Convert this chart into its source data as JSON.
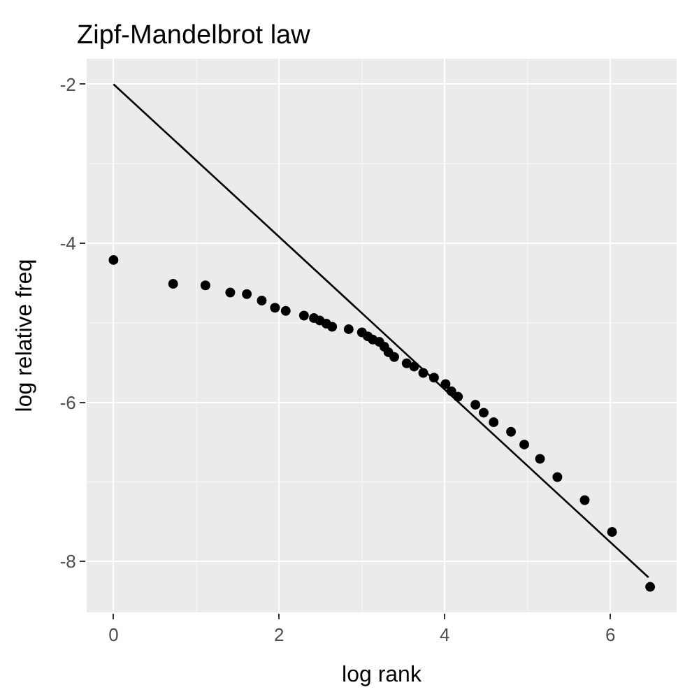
{
  "chart_data": {
    "type": "scatter",
    "title": "Zipf-Mandelbrot law",
    "xlabel": "log rank",
    "ylabel": "log relative freq",
    "xlim": [
      -0.324,
      6.8
    ],
    "xticks": [
      0,
      2,
      4,
      6
    ],
    "ylim": [
      -8.64,
      -1.68
    ],
    "yticks": [
      -8,
      -6,
      -4,
      -2
    ],
    "grid": true,
    "legend": false,
    "series": [
      {
        "color": "#000000",
        "marker": "circle",
        "x": [
          0,
          0.72,
          1.11,
          1.41,
          1.61,
          1.79,
          1.95,
          2.08,
          2.3,
          2.42,
          2.49,
          2.57,
          2.64,
          2.84,
          3.0,
          3.07,
          3.13,
          3.21,
          3.27,
          3.32,
          3.39,
          3.54,
          3.63,
          3.74,
          3.87,
          4.01,
          4.08,
          4.16,
          4.37,
          4.47,
          4.59,
          4.8,
          4.96,
          5.15,
          5.36,
          5.69,
          6.02,
          6.48
        ],
        "values": [
          -4.21,
          -4.51,
          -4.53,
          -4.62,
          -4.64,
          -4.72,
          -4.81,
          -4.85,
          -4.91,
          -4.94,
          -4.97,
          -5.01,
          -5.05,
          -5.08,
          -5.12,
          -5.17,
          -5.21,
          -5.24,
          -5.3,
          -5.37,
          -5.43,
          -5.51,
          -5.55,
          -5.63,
          -5.69,
          -5.77,
          -5.86,
          -5.93,
          -6.03,
          -6.13,
          -6.25,
          -6.37,
          -6.53,
          -6.71,
          -6.94,
          -7.23,
          -7.63,
          -8.32
        ]
      },
      {
        "type": "line",
        "marker": "none",
        "color": "#000000",
        "x": [
          0,
          6.46
        ],
        "values": [
          -2,
          -8.2
        ]
      }
    ]
  }
}
